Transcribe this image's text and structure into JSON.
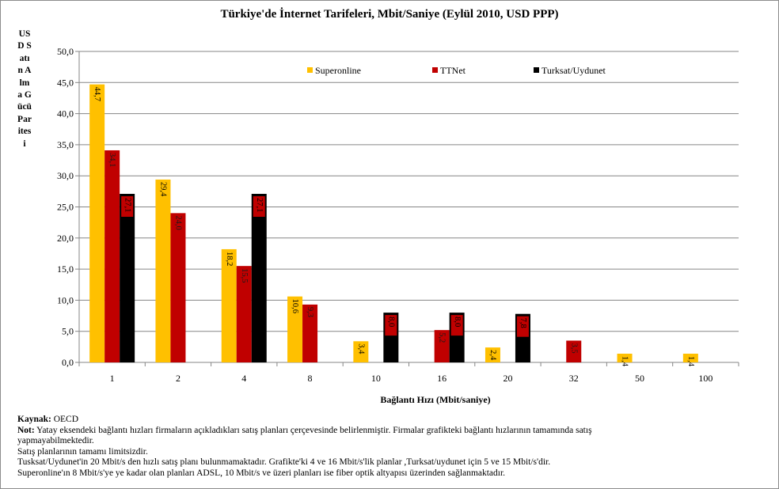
{
  "chart_data": {
    "type": "bar",
    "title": "Türkiye'de İnternet Tarifeleri, Mbit/Saniye (Eylül 2010, USD PPP)",
    "ylabel": "USD Satın Alma Gücü Paritesi",
    "xlabel": "Bağlantı Hızı (Mbit/saniye)",
    "categories": [
      "1",
      "2",
      "4",
      "8",
      "10",
      "16",
      "20",
      "32",
      "50",
      "100"
    ],
    "ylim": [
      0,
      50
    ],
    "yticks": [
      "0,0",
      "5,0",
      "10,0",
      "15,0",
      "20,0",
      "25,0",
      "30,0",
      "35,0",
      "40,0",
      "45,0",
      "50,0"
    ],
    "grid": true,
    "legend_position": "top",
    "series": [
      {
        "name": "Superonline",
        "color": "#FFC000",
        "values": [
          44.7,
          29.4,
          18.2,
          10.6,
          3.4,
          null,
          2.4,
          null,
          1.4,
          1.4
        ],
        "labels": [
          "44,7",
          "29,4",
          "18,2",
          "10,6",
          "3,4",
          "",
          "2,4",
          "",
          "1,4",
          "1,4"
        ]
      },
      {
        "name": "TTNet",
        "color": "#C00000",
        "values": [
          34.1,
          24.0,
          15.5,
          9.3,
          null,
          5.2,
          null,
          3.5,
          null,
          null
        ],
        "labels": [
          "34,1",
          "24,0",
          "15,5",
          "9,3",
          "",
          "5,2",
          "",
          "3,5",
          "",
          ""
        ]
      },
      {
        "name": "Turksat/Uydunet",
        "color": "#000000",
        "values": [
          27.1,
          null,
          27.1,
          null,
          8.0,
          8.0,
          7.8,
          null,
          null,
          null
        ],
        "labels": [
          "27,1",
          "",
          "27,1",
          "",
          "8,0",
          "8,0",
          "7,8",
          "",
          "",
          ""
        ]
      }
    ]
  },
  "notes": {
    "source_label": "Kaynak:",
    "source_value": " OECD",
    "note_label": "Not:",
    "note_line1": " Yatay eksendeki bağlantı hızları firmaların  açıkladıkları satış  planları çerçevesinde belirlenmiştir.  Firmalar grafikteki bağlantı hızlarının tamamında satış",
    "note_line2": "yapmayabilmektedir.",
    "line3": "Satış planlarının tamamı limitsizdir.",
    "line4": "Tusksat/Uydunet'in 20 Mbit/s  den hızlı satış planı bulunmamaktadır. Grafikte'ki 4 ve 16 Mbit/s'lik  planlar ,Turksat/uydunet için 5 ve 15 Mbit/s'dir.",
    "line5": "Superonline'ın 8 Mbit/s'ye ye kadar olan planları ADSL, 10 Mbit/s ve üzeri planları ise fiber optik altyapısı üzerinden sağlanmaktadır."
  }
}
